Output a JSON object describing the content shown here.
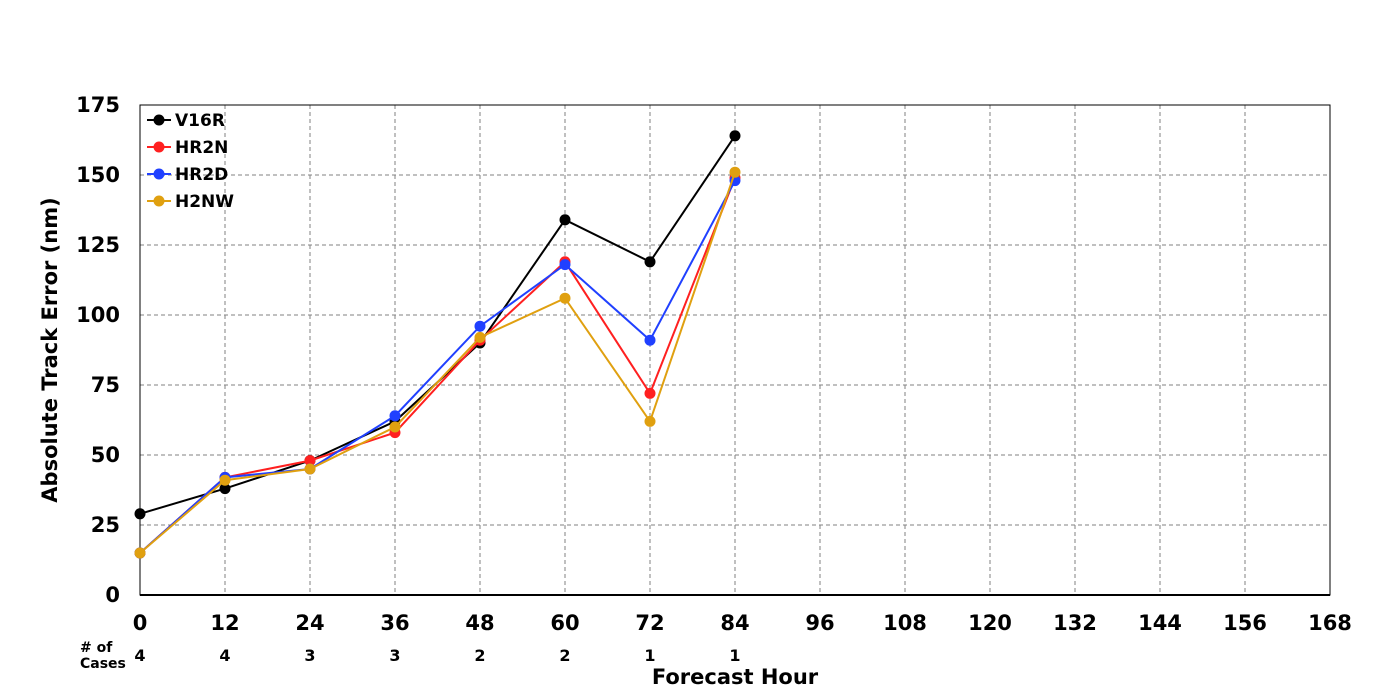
{
  "chart_data": {
    "type": "line",
    "title": "",
    "xlabel": "Forecast Hour",
    "ylabel": "Absolute Track Error (nm)",
    "xlim": [
      0,
      168
    ],
    "ylim": [
      0,
      175
    ],
    "x_ticks": [
      0,
      12,
      24,
      36,
      48,
      60,
      72,
      84,
      96,
      108,
      120,
      132,
      144,
      156,
      168
    ],
    "y_ticks": [
      0,
      25,
      50,
      75,
      100,
      125,
      150,
      175
    ],
    "grid": true,
    "legend_position": "top-left",
    "series": [
      {
        "name": "V16R",
        "color": "#000000",
        "x": [
          0,
          12,
          24,
          36,
          48,
          60,
          72,
          84
        ],
        "values": [
          29,
          38,
          48,
          62,
          90,
          134,
          119,
          164
        ]
      },
      {
        "name": "HR2N",
        "color": "#ff2020",
        "x": [
          0,
          12,
          24,
          36,
          48,
          60,
          72,
          84
        ],
        "values": [
          15,
          42,
          48,
          58,
          91,
          119,
          72,
          149
        ]
      },
      {
        "name": "HR2D",
        "color": "#2040ff",
        "x": [
          0,
          12,
          24,
          36,
          48,
          60,
          72,
          84
        ],
        "values": [
          15,
          42,
          45,
          64,
          96,
          118,
          91,
          148
        ]
      },
      {
        "name": "H2NW",
        "color": "#e0a010",
        "x": [
          0,
          12,
          24,
          36,
          48,
          60,
          72,
          84
        ],
        "values": [
          15,
          41,
          45,
          60,
          92,
          106,
          62,
          151
        ]
      }
    ],
    "cases": {
      "label_line1": "# of",
      "label_line2": "Cases",
      "x": [
        0,
        12,
        24,
        36,
        48,
        60,
        72,
        84
      ],
      "values": [
        "4",
        "4",
        "3",
        "3",
        "2",
        "2",
        "1",
        "1"
      ]
    }
  }
}
